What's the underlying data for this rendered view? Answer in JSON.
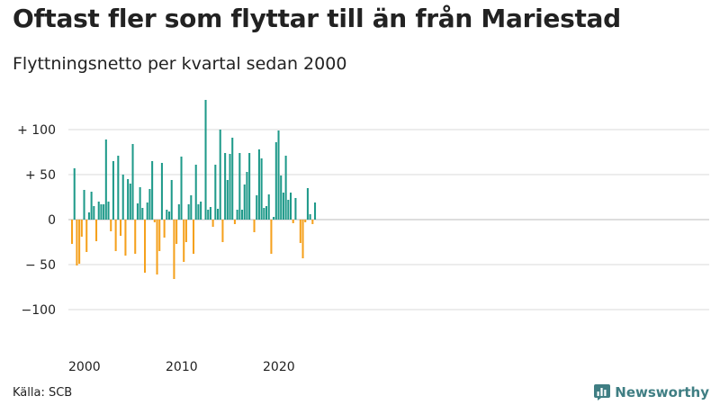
{
  "title": "Oftast fler som flyttar till än från Mariestad",
  "subtitle": "Flyttningsnetto per kvartal sedan 2000",
  "source": "Källa: SCB",
  "brand": {
    "label": "Newsworthy",
    "icon": "newsworthy-logo-icon",
    "color": "#3f7e83"
  },
  "colors": {
    "positive": "#1f9a8a",
    "negative": "#f5a11d",
    "grid": "#d9d9d9"
  },
  "chart_data": {
    "type": "bar",
    "series": [
      {
        "values": [
          -27,
          57,
          -51,
          -49,
          -19,
          33,
          -36,
          8,
          31,
          15,
          -24,
          20,
          17,
          17,
          89,
          20,
          -13,
          65,
          -35,
          71,
          -18,
          50,
          -40,
          45,
          40,
          84,
          -38,
          18,
          36,
          13,
          -59,
          19,
          34,
          65,
          -3,
          -61,
          -35,
          63,
          -20,
          11,
          9,
          44,
          -66,
          -27,
          17,
          70,
          -47,
          -25,
          17,
          27,
          -38,
          61,
          17,
          20,
          0,
          133,
          11,
          14,
          -8,
          61,
          12,
          100,
          -25,
          74,
          44,
          73,
          91,
          -5,
          11,
          74,
          11,
          39,
          53,
          74,
          0,
          -14,
          27,
          78,
          68,
          13,
          15,
          28,
          -38,
          3,
          86,
          99,
          49,
          30,
          71,
          22,
          30,
          -4,
          24,
          0,
          -26,
          -43,
          -3,
          35,
          6,
          -5,
          19
        ]
      }
    ],
    "x_start": "2000 Q1",
    "x_ticks": [
      {
        "value": 2000,
        "label": "2000"
      },
      {
        "value": 2010,
        "label": "2010"
      },
      {
        "value": 2020,
        "label": "2020"
      }
    ],
    "y_ticks": [
      {
        "value": 100,
        "label": "+ 100"
      },
      {
        "value": 50,
        "label": "+  50"
      },
      {
        "value": 0,
        "label": "0"
      },
      {
        "value": -50,
        "label": "− 50"
      },
      {
        "value": -100,
        "label": "−100"
      }
    ],
    "ylim": [
      -110,
      140
    ],
    "grid": true,
    "legend": "none"
  }
}
